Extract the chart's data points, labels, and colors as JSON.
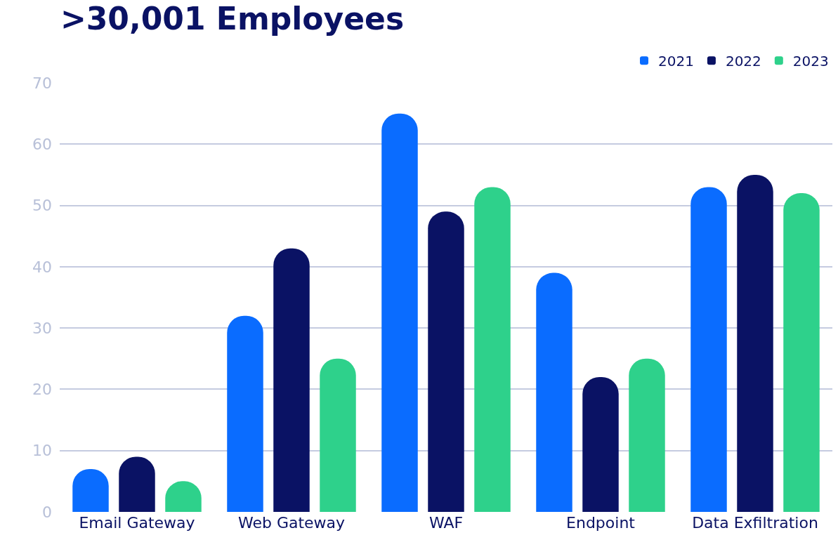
{
  "chart_data": {
    "type": "bar",
    "title": ">30,001 Employees",
    "categories": [
      "Email Gateway",
      "Web Gateway",
      "WAF",
      "Endpoint",
      "Data Exfiltration"
    ],
    "series": [
      {
        "name": "2021",
        "color": "#0a6cff",
        "values": [
          7,
          32,
          65,
          39,
          53
        ]
      },
      {
        "name": "2022",
        "color": "#0a1264",
        "values": [
          9,
          43,
          49,
          22,
          55
        ]
      },
      {
        "name": "2023",
        "color": "#2ed18b",
        "values": [
          5,
          25,
          53,
          25,
          52
        ]
      }
    ],
    "ylim": [
      0,
      70
    ],
    "yticks": [
      0,
      10,
      20,
      30,
      40,
      50,
      60,
      70
    ],
    "grid": "y",
    "legend": "top right"
  }
}
